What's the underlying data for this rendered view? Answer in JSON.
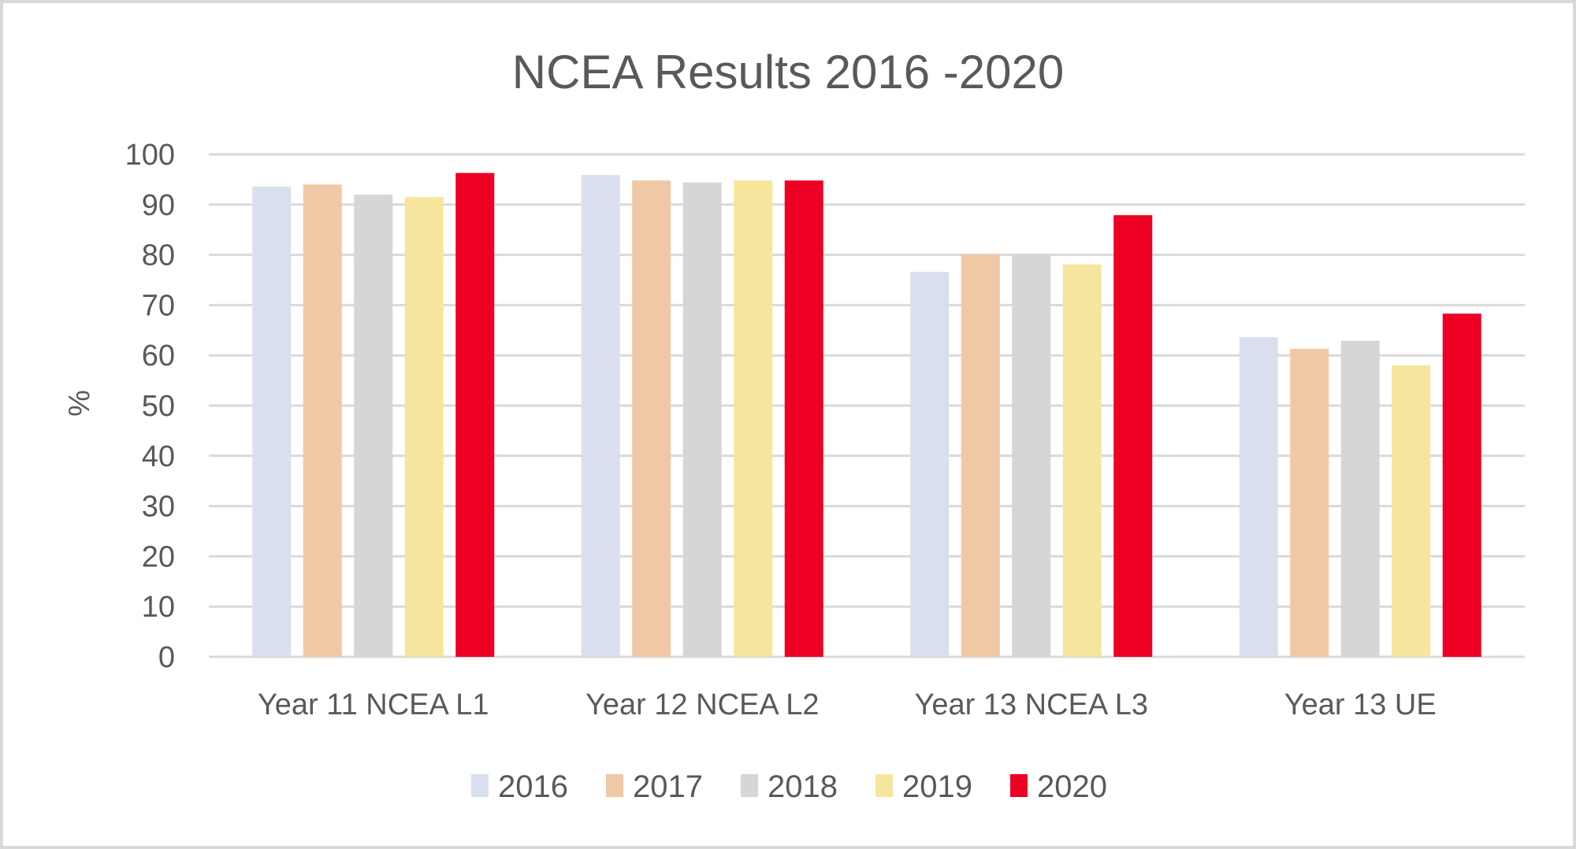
{
  "chart_data": {
    "type": "bar",
    "title": "NCEA Results 2016 -2020",
    "xlabel": "",
    "ylabel": "%",
    "ylim": [
      0,
      100
    ],
    "yticks": [
      0,
      10,
      20,
      30,
      40,
      50,
      60,
      70,
      80,
      90,
      100
    ],
    "grid": true,
    "legend_position": "bottom",
    "categories": [
      "Year 11 NCEA L1",
      "Year 12 NCEA L2",
      "Year 13 NCEA L3",
      "Year 13 UE"
    ],
    "series": [
      {
        "name": "2016",
        "color": "#DADFEF",
        "values": [
          93.6,
          95.9,
          76.6,
          63.6
        ]
      },
      {
        "name": "2017",
        "color": "#F1C8A6",
        "values": [
          94.0,
          94.8,
          80.1,
          61.3
        ]
      },
      {
        "name": "2018",
        "color": "#D6D6D6",
        "values": [
          92.0,
          94.4,
          80.1,
          62.9
        ]
      },
      {
        "name": "2019",
        "color": "#F6E59C",
        "values": [
          91.5,
          94.8,
          78.1,
          58.0
        ]
      },
      {
        "name": "2020",
        "color": "#EE0022",
        "values": [
          96.3,
          94.8,
          87.9,
          68.3
        ]
      }
    ]
  }
}
